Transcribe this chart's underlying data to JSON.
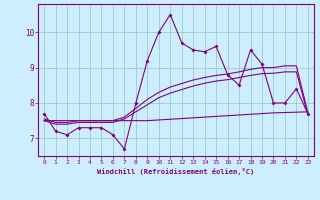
{
  "xlabel": "Windchill (Refroidissement éolien,°C)",
  "bg_color": "#cceeff",
  "line_color": "#800080",
  "grid_color": "#99cccc",
  "x_values": [
    0,
    1,
    2,
    3,
    4,
    5,
    6,
    7,
    8,
    9,
    10,
    11,
    12,
    13,
    14,
    15,
    16,
    17,
    18,
    19,
    20,
    21,
    22,
    23
  ],
  "y_main": [
    7.7,
    7.2,
    7.1,
    7.3,
    7.3,
    7.3,
    7.1,
    6.7,
    8.0,
    9.2,
    10.0,
    10.5,
    9.7,
    9.5,
    9.45,
    9.6,
    8.8,
    8.5,
    9.5,
    9.1,
    8.0,
    8.0,
    8.4,
    7.7
  ],
  "y_trend_upper": [
    7.55,
    7.45,
    7.45,
    7.5,
    7.5,
    7.5,
    7.5,
    7.6,
    7.85,
    8.1,
    8.3,
    8.45,
    8.55,
    8.65,
    8.72,
    8.78,
    8.82,
    8.88,
    8.95,
    9.0,
    9.0,
    9.05,
    9.05,
    7.72
  ],
  "y_trend_mid": [
    7.5,
    7.4,
    7.4,
    7.45,
    7.45,
    7.45,
    7.45,
    7.55,
    7.75,
    7.95,
    8.15,
    8.28,
    8.38,
    8.48,
    8.56,
    8.62,
    8.66,
    8.72,
    8.78,
    8.83,
    8.84,
    8.88,
    8.88,
    7.67
  ],
  "y_flat": [
    7.5,
    7.5,
    7.5,
    7.5,
    7.5,
    7.5,
    7.5,
    7.5,
    7.5,
    7.5,
    7.52,
    7.54,
    7.56,
    7.58,
    7.6,
    7.62,
    7.64,
    7.66,
    7.68,
    7.7,
    7.72,
    7.73,
    7.74,
    7.75
  ],
  "ylim": [
    6.5,
    10.8
  ],
  "xlim": [
    -0.5,
    23.5
  ],
  "yticks": [
    7,
    8,
    9,
    10
  ],
  "xticks": [
    0,
    1,
    2,
    3,
    4,
    5,
    6,
    7,
    8,
    9,
    10,
    11,
    12,
    13,
    14,
    15,
    16,
    17,
    18,
    19,
    20,
    21,
    22,
    23
  ]
}
